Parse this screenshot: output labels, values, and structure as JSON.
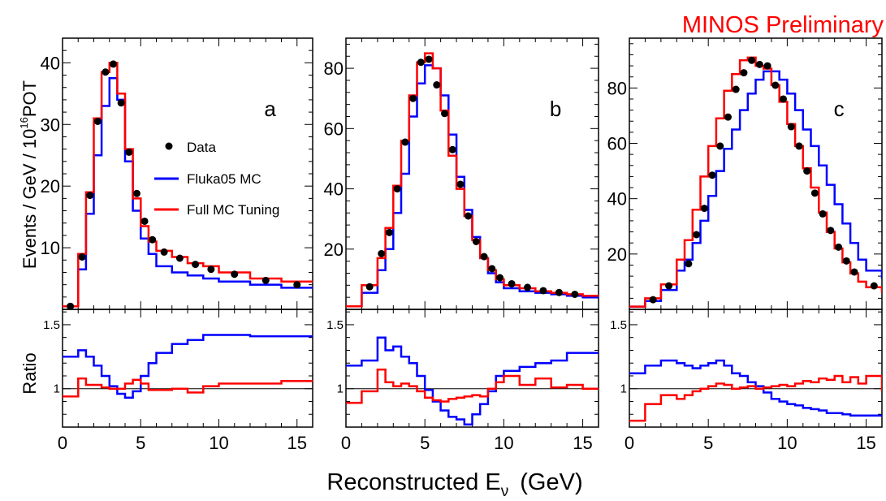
{
  "header": {
    "label": "MINOS Preliminary",
    "label_color": "#ff0000"
  },
  "xlabel": "Reconstructed E",
  "xlabel_sub": "ν",
  "xlabel_unit": "(GeV)",
  "ylabel_top": "Events / GeV / 10",
  "ylabel_top_exp": "16",
  "ylabel_top_unit": "POT",
  "ylabel_bottom": "Ratio",
  "legend": {
    "data": "Data",
    "fluka": "Fluka05 MC",
    "tuned": "Full MC Tuning"
  },
  "colors": {
    "data": "#000000",
    "fluka": "#0000ff",
    "tuned": "#ff0000",
    "ratio_line": "#000000"
  },
  "chart_data": [
    {
      "type": "line",
      "panel": "a",
      "xlim": [
        0,
        16
      ],
      "ylim": [
        0,
        44
      ],
      "yticks": [
        10,
        20,
        30,
        40
      ],
      "xticks": [
        0,
        5,
        10,
        15
      ],
      "bin_edges": [
        0,
        1,
        1.5,
        2,
        2.5,
        3,
        3.5,
        4,
        4.5,
        5,
        5.5,
        6,
        7,
        8,
        9,
        10,
        12,
        14,
        16
      ],
      "series": [
        {
          "name": "Fluka05 MC",
          "values": [
            0.5,
            6.5,
            15.5,
            25,
            33,
            37.5,
            34,
            24,
            16,
            11.5,
            9,
            7,
            6,
            5.5,
            5,
            4.5,
            4,
            3.5
          ]
        },
        {
          "name": "Full MC Tuning",
          "values": [
            0.5,
            9,
            19,
            31,
            38.5,
            40,
            35,
            26,
            18,
            13.5,
            11,
            9.5,
            8.5,
            7.5,
            7,
            6,
            5,
            4.5
          ]
        }
      ],
      "data": {
        "name": "Data",
        "x": [
          0.5,
          1.25,
          1.75,
          2.25,
          2.75,
          3.25,
          3.75,
          4.25,
          4.75,
          5.25,
          5.75,
          6.5,
          7.5,
          8.5,
          9.5,
          11,
          13,
          15
        ],
        "y": [
          0.5,
          8.5,
          18.5,
          30.5,
          38.5,
          39.8,
          33.5,
          25.5,
          18.8,
          14.3,
          11.3,
          9.3,
          8.3,
          7.3,
          6.5,
          5.7,
          4.7,
          4
        ]
      },
      "ratio": {
        "ylim": [
          0.7,
          1.62
        ],
        "ytick": [
          1,
          1.5
        ],
        "series": [
          {
            "name": "Fluka05 MC",
            "values": [
              1.25,
              1.3,
              1.25,
              1.18,
              1.1,
              1.02,
              0.96,
              0.93,
              0.98,
              1.1,
              1.2,
              1.28,
              1.35,
              1.38,
              1.42,
              1.42,
              1.41,
              1.41
            ]
          },
          {
            "name": "Full MC Tuning",
            "values": [
              0.94,
              1.08,
              1.03,
              1.03,
              1.01,
              1.0,
              1.0,
              1.04,
              1.07,
              1.04,
              0.99,
              0.99,
              1.0,
              0.97,
              1.02,
              1.04,
              1.04,
              1.06
            ]
          }
        ]
      }
    },
    {
      "type": "line",
      "panel": "b",
      "xlim": [
        0,
        16
      ],
      "ylim": [
        0,
        90
      ],
      "yticks": [
        20,
        40,
        60,
        80
      ],
      "xticks": [
        0,
        5,
        10,
        15
      ],
      "bin_edges": [
        0,
        1,
        2,
        2.5,
        3,
        3.5,
        4,
        4.5,
        5,
        5.5,
        6,
        6.5,
        7,
        7.5,
        8,
        8.5,
        9,
        9.5,
        10,
        11,
        12,
        13,
        14,
        15,
        16
      ],
      "series": [
        {
          "name": "Fluka05 MC",
          "values": [
            1,
            5.5,
            13,
            20,
            32,
            45,
            64,
            75,
            81,
            80,
            71,
            58,
            44,
            33,
            24,
            17,
            12,
            9,
            7,
            6,
            5.5,
            5,
            4.5,
            4
          ]
        },
        {
          "name": "Full MC Tuning",
          "values": [
            1,
            8,
            17,
            27,
            41,
            56,
            71,
            82,
            85,
            80,
            66,
            51,
            40,
            31,
            23,
            17,
            13,
            10,
            8,
            7,
            6,
            5.5,
            5,
            4.5
          ]
        }
      ],
      "data": {
        "name": "Data",
        "x": [
          1.5,
          2.25,
          2.75,
          3.25,
          3.75,
          4.25,
          4.75,
          5.25,
          5.75,
          6.25,
          6.75,
          7.25,
          7.75,
          8.25,
          8.75,
          9.25,
          9.75,
          10.5,
          11.5,
          12.5,
          13.5,
          14.5
        ],
        "y": [
          7.5,
          18.5,
          25.5,
          40,
          55.5,
          70,
          82,
          83,
          74.5,
          65,
          53,
          41.5,
          31,
          22.5,
          17.5,
          13.5,
          10.5,
          8.5,
          7.3,
          6.2,
          5.6,
          5
        ]
      },
      "ratio": {
        "ylim": [
          0.7,
          1.62
        ],
        "ytick": [
          1,
          1.5
        ],
        "series": [
          {
            "name": "Fluka05 MC",
            "values": [
              1.18,
              1.22,
              1.4,
              1.3,
              1.33,
              1.25,
              1.2,
              1.1,
              0.99,
              0.9,
              0.83,
              0.78,
              0.76,
              0.72,
              0.8,
              0.88,
              0.98,
              1.1,
              1.14,
              1.17,
              1.2,
              1.22,
              1.28,
              1.28
            ]
          },
          {
            "name": "Full MC Tuning",
            "values": [
              0.89,
              0.98,
              1.15,
              1.05,
              1.02,
              1.04,
              1.02,
              0.98,
              0.93,
              0.91,
              0.9,
              0.92,
              0.93,
              0.94,
              0.95,
              0.94,
              1.0,
              1.05,
              1.1,
              1.03,
              1.08,
              1.01,
              1.03,
              1.0
            ]
          }
        ]
      }
    },
    {
      "type": "line",
      "panel": "c",
      "xlim": [
        0,
        16
      ],
      "ylim": [
        0,
        98
      ],
      "yticks": [
        20,
        40,
        60,
        80
      ],
      "xticks": [
        0,
        5,
        10,
        15
      ],
      "bin_edges": [
        0,
        1,
        2,
        3,
        3.5,
        4,
        4.5,
        5,
        5.5,
        6,
        6.5,
        7,
        7.5,
        8,
        8.5,
        9,
        9.5,
        10,
        10.5,
        11,
        11.5,
        12,
        12.5,
        13,
        13.5,
        14,
        14.5,
        15,
        16
      ],
      "series": [
        {
          "name": "Fluka05 MC",
          "values": [
            1,
            3,
            7,
            14,
            18,
            24,
            32,
            41,
            50,
            58,
            65,
            72,
            78,
            83,
            86,
            86,
            83,
            78,
            72,
            65,
            59,
            52,
            45,
            38,
            31,
            24,
            18,
            14,
            11
          ]
        },
        {
          "name": "Full MC Tuning",
          "values": [
            1,
            4,
            9,
            18,
            25,
            36,
            48,
            59,
            69,
            79,
            85,
            90,
            91,
            88,
            87,
            81,
            75,
            67,
            59,
            51,
            44,
            35,
            28,
            22,
            17,
            13,
            10,
            8,
            6
          ]
        }
      ],
      "data": {
        "name": "Data",
        "x": [
          1.5,
          2.5,
          3.75,
          4.25,
          4.75,
          5.25,
          5.75,
          6.25,
          6.75,
          7.25,
          7.75,
          8.25,
          8.75,
          9.25,
          9.75,
          10.25,
          10.75,
          11.25,
          11.75,
          12.25,
          12.75,
          13.25,
          13.75,
          14.25,
          15.5
        ],
        "y": [
          3.5,
          8.5,
          16.5,
          27,
          36.5,
          48.5,
          59,
          69.5,
          79.5,
          85.5,
          90,
          88.5,
          88,
          81,
          76,
          66,
          59,
          50,
          42,
          34.5,
          28.5,
          22.5,
          17.5,
          13.5,
          8.5
        ]
      },
      "ratio": {
        "ylim": [
          0.7,
          1.62
        ],
        "ytick": [
          1,
          1.5
        ],
        "series": [
          {
            "name": "Fluka05 MC",
            "values": [
              1.12,
              1.18,
              1.22,
              1.2,
              1.18,
              1.16,
              1.18,
              1.2,
              1.22,
              1.18,
              1.12,
              1.1,
              1.05,
              1.02,
              0.97,
              0.92,
              0.9,
              0.88,
              0.87,
              0.85,
              0.84,
              0.83,
              0.81,
              0.81,
              0.8,
              0.79,
              0.79,
              0.79,
              0.79
            ]
          },
          {
            "name": "Full MC Tuning",
            "values": [
              0.75,
              0.88,
              0.95,
              0.92,
              0.95,
              0.98,
              1.0,
              1.02,
              1.04,
              1.03,
              1.0,
              1.01,
              1.02,
              1.0,
              1.01,
              1.02,
              1.03,
              1.02,
              1.04,
              1.06,
              1.05,
              1.08,
              1.07,
              1.1,
              1.05,
              1.09,
              1.04,
              1.1,
              0.98
            ]
          }
        ]
      }
    }
  ]
}
